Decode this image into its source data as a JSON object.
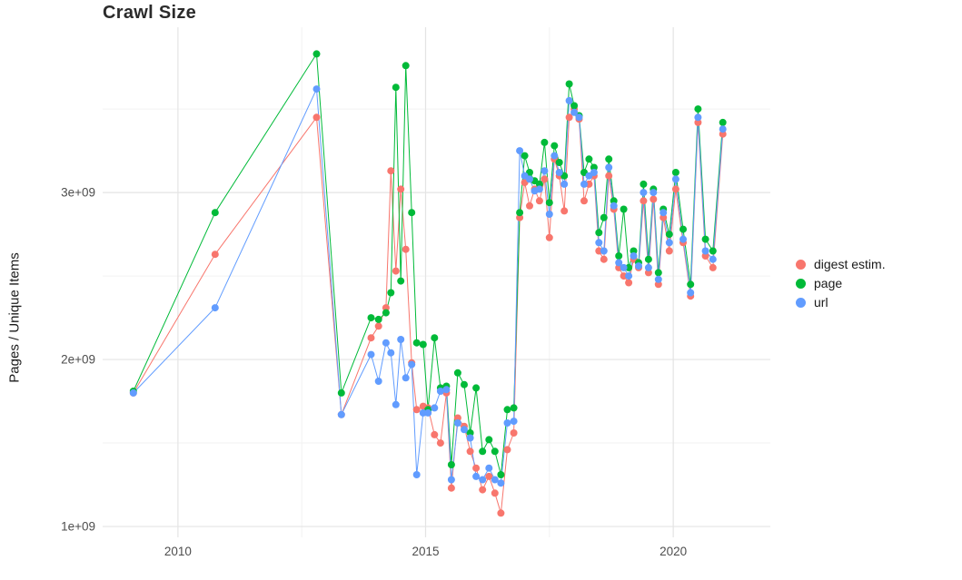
{
  "chart": {
    "title": "Crawl Size",
    "ylabel": "Pages / Unique Items"
  },
  "legend": {
    "items": [
      {
        "label": "digest estim.",
        "color": "#F8766D"
      },
      {
        "label": "page",
        "color": "#00BA38"
      },
      {
        "label": "url",
        "color": "#619CFF"
      }
    ]
  },
  "chart_data": {
    "type": "line",
    "title": "Crawl Size",
    "xlabel": "",
    "ylabel": "Pages / Unique Items",
    "legend_position": "right",
    "grid": true,
    "markers": true,
    "xlim": [
      2008.48,
      2021.96
    ],
    "ylim": [
      935000000,
      3990000000
    ],
    "x_ticks": [
      2010,
      2015,
      2020
    ],
    "x_tick_labels": [
      "2010",
      "2015",
      "2020"
    ],
    "y_ticks": [
      1000000000,
      2000000000,
      3000000000
    ],
    "y_tick_labels": [
      "1e+09",
      "2e+09",
      "3e+09"
    ],
    "x_minor_ticks": [
      2012.5,
      2017.5
    ],
    "y_minor_ticks": [
      1500000000,
      2500000000,
      3500000000
    ],
    "x": [
      2009.1,
      2010.75,
      2012.8,
      2013.3,
      2013.9,
      2014.05,
      2014.2,
      2014.3,
      2014.4,
      2014.5,
      2014.6,
      2014.72,
      2014.82,
      2014.95,
      2015.05,
      2015.18,
      2015.3,
      2015.42,
      2015.52,
      2015.65,
      2015.78,
      2015.9,
      2016.02,
      2016.15,
      2016.28,
      2016.4,
      2016.52,
      2016.65,
      2016.78,
      2016.9,
      2017.0,
      2017.1,
      2017.2,
      2017.3,
      2017.4,
      2017.5,
      2017.6,
      2017.7,
      2017.8,
      2017.9,
      2018.0,
      2018.1,
      2018.2,
      2018.3,
      2018.4,
      2018.5,
      2018.6,
      2018.7,
      2018.8,
      2018.9,
      2019.0,
      2019.1,
      2019.2,
      2019.3,
      2019.4,
      2019.5,
      2019.6,
      2019.7,
      2019.8,
      2019.92,
      2020.05,
      2020.2,
      2020.35,
      2020.5,
      2020.65,
      2020.8,
      2021.0
    ],
    "series": [
      {
        "name": "digest estim.",
        "color": "#F8766D",
        "values": [
          1800000000.0,
          2630000000.0,
          3450000000.0,
          1670000000.0,
          2130000000.0,
          2200000000.0,
          2310000000.0,
          3130000000.0,
          2530000000.0,
          3020000000.0,
          2660000000.0,
          1980000000.0,
          1700000000.0,
          1720000000.0,
          1710000000.0,
          1550000000.0,
          1500000000.0,
          1800000000.0,
          1230000000.0,
          1650000000.0,
          1600000000.0,
          1450000000.0,
          1350000000.0,
          1220000000.0,
          1300000000.0,
          1200000000.0,
          1080000000.0,
          1460000000.0,
          1560000000.0,
          2850000000.0,
          3060000000.0,
          2920000000.0,
          3020000000.0,
          2950000000.0,
          3080000000.0,
          2730000000.0,
          3200000000.0,
          3100000000.0,
          2890000000.0,
          3450000000.0,
          3500000000.0,
          3440000000.0,
          2950000000.0,
          3050000000.0,
          3100000000.0,
          2650000000.0,
          2600000000.0,
          3100000000.0,
          2900000000.0,
          2550000000.0,
          2500000000.0,
          2460000000.0,
          2600000000.0,
          2550000000.0,
          2950000000.0,
          2520000000.0,
          2960000000.0,
          2450000000.0,
          2850000000.0,
          2650000000.0,
          3020000000.0,
          2700000000.0,
          2380000000.0,
          3420000000.0,
          2620000000.0,
          2550000000.0,
          3350000000.0
        ]
      },
      {
        "name": "page",
        "color": "#00BA38",
        "values": [
          1810000000.0,
          2880000000.0,
          3830000000.0,
          1800000000.0,
          2250000000.0,
          2240000000.0,
          2280000000.0,
          2400000000.0,
          3630000000.0,
          2470000000.0,
          3760000000.0,
          2880000000.0,
          2100000000.0,
          2090000000.0,
          1700000000.0,
          2130000000.0,
          1830000000.0,
          1840000000.0,
          1370000000.0,
          1920000000.0,
          1850000000.0,
          1560000000.0,
          1830000000.0,
          1450000000.0,
          1520000000.0,
          1450000000.0,
          1310000000.0,
          1700000000.0,
          1710000000.0,
          2880000000.0,
          3220000000.0,
          3120000000.0,
          3070000000.0,
          3050000000.0,
          3300000000.0,
          2940000000.0,
          3280000000.0,
          3180000000.0,
          3100000000.0,
          3650000000.0,
          3520000000.0,
          3460000000.0,
          3120000000.0,
          3200000000.0,
          3150000000.0,
          2760000000.0,
          2850000000.0,
          3200000000.0,
          2950000000.0,
          2620000000.0,
          2900000000.0,
          2550000000.0,
          2650000000.0,
          2580000000.0,
          3050000000.0,
          2600000000.0,
          3020000000.0,
          2520000000.0,
          2900000000.0,
          2750000000.0,
          3120000000.0,
          2780000000.0,
          2450000000.0,
          3500000000.0,
          2720000000.0,
          2650000000.0,
          3420000000.0
        ]
      },
      {
        "name": "url",
        "color": "#619CFF",
        "values": [
          1800000000.0,
          2310000000.0,
          3620000000.0,
          1670000000.0,
          2030000000.0,
          1870000000.0,
          2100000000.0,
          2040000000.0,
          1730000000.0,
          2120000000.0,
          1890000000.0,
          1970000000.0,
          1310000000.0,
          1680000000.0,
          1680000000.0,
          1710000000.0,
          1810000000.0,
          1820000000.0,
          1280000000.0,
          1620000000.0,
          1580000000.0,
          1530000000.0,
          1300000000.0,
          1280000000.0,
          1350000000.0,
          1280000000.0,
          1260000000.0,
          1620000000.0,
          1630000000.0,
          3250000000.0,
          3100000000.0,
          3080000000.0,
          3010000000.0,
          3020000000.0,
          3130000000.0,
          2870000000.0,
          3220000000.0,
          3120000000.0,
          3050000000.0,
          3550000000.0,
          3480000000.0,
          3450000000.0,
          3050000000.0,
          3100000000.0,
          3120000000.0,
          2700000000.0,
          2650000000.0,
          3150000000.0,
          2920000000.0,
          2580000000.0,
          2550000000.0,
          2500000000.0,
          2620000000.0,
          2560000000.0,
          3000000000.0,
          2550000000.0,
          3000000000.0,
          2480000000.0,
          2880000000.0,
          2700000000.0,
          3080000000.0,
          2720000000.0,
          2400000000.0,
          3450000000.0,
          2650000000.0,
          2600000000.0,
          3380000000.0
        ]
      }
    ]
  }
}
